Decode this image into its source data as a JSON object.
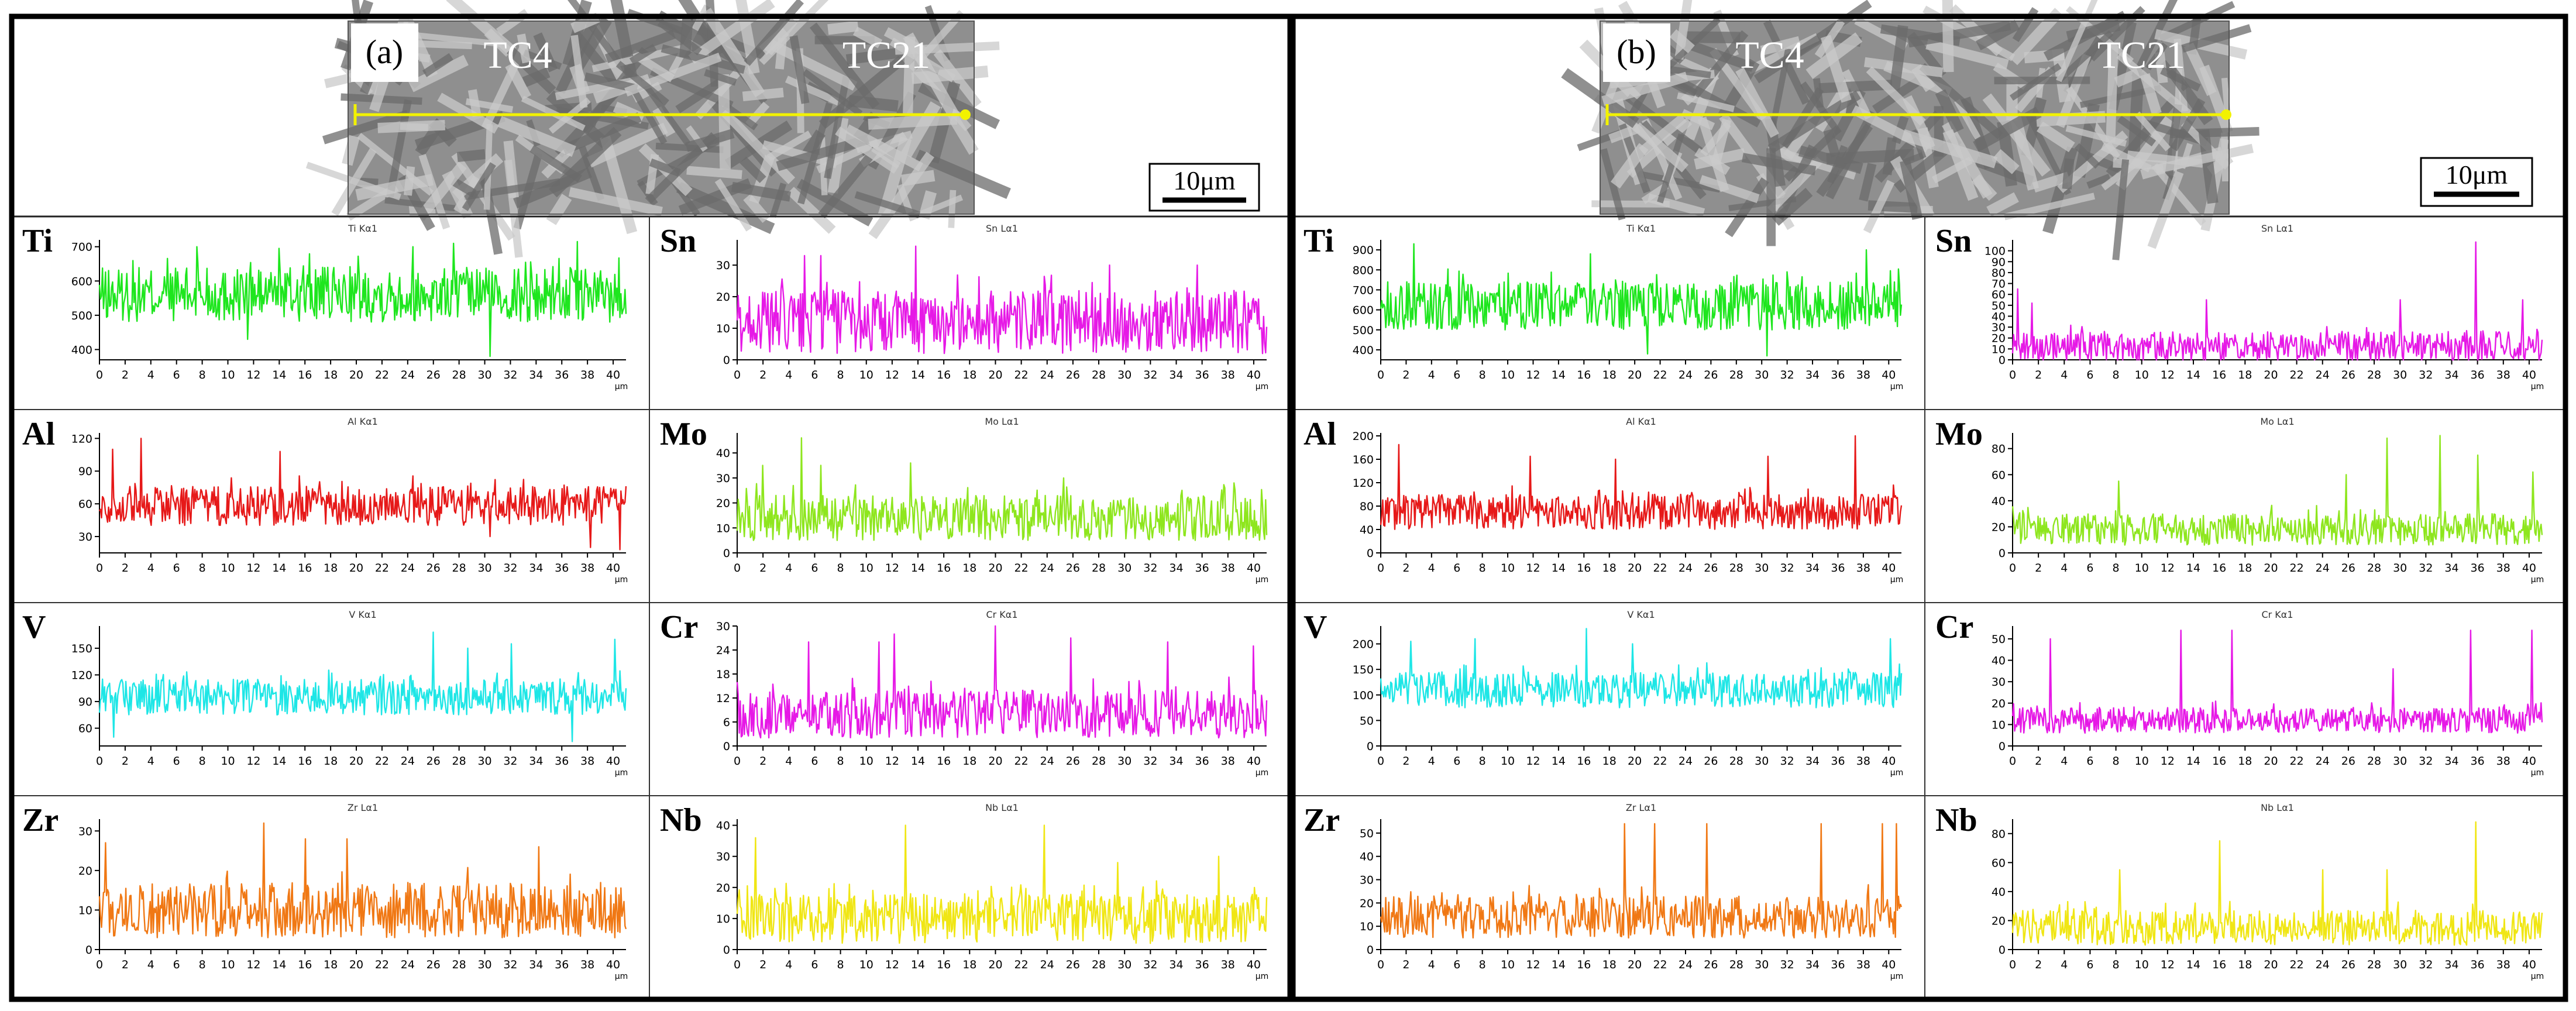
{
  "figure": {
    "x_unit": "μm",
    "scale_bar_label": "10μm",
    "panels": [
      {
        "id": "a",
        "label": "(a)",
        "left_material": "TC4",
        "right_material": "TC21"
      },
      {
        "id": "b",
        "label": "(b)",
        "left_material": "TC4",
        "right_material": "TC21"
      }
    ]
  },
  "chart_data": [
    {
      "panel": "a",
      "element": "Ti",
      "title": "Ti Kα1",
      "type": "line",
      "color": "#1ee61e",
      "x_range": [
        0,
        41
      ],
      "x_ticks": [
        0,
        2,
        4,
        6,
        8,
        10,
        12,
        14,
        16,
        18,
        20,
        22,
        24,
        26,
        28,
        30,
        32,
        34,
        36,
        38,
        40
      ],
      "ylim": [
        370,
        720
      ],
      "y_ticks": [
        400,
        500,
        600,
        700
      ],
      "series": [
        {
          "name": "Ti Kα1",
          "baseline": 560,
          "amplitude": 80,
          "spikes": [
            [
              7.6,
              700
            ],
            [
              11.5,
              430
            ],
            [
              14.0,
              695
            ],
            [
              24.4,
              700
            ],
            [
              27.6,
              710
            ],
            [
              30.4,
              380
            ],
            [
              37.2,
              715
            ]
          ]
        }
      ]
    },
    {
      "panel": "a",
      "element": "Sn",
      "title": "Sn Lα1",
      "type": "line",
      "color": "#e619e6",
      "x_range": [
        0,
        41
      ],
      "x_ticks": [
        0,
        2,
        4,
        6,
        8,
        10,
        12,
        14,
        16,
        18,
        20,
        22,
        24,
        26,
        28,
        30,
        32,
        34,
        36,
        38,
        40
      ],
      "ylim": [
        0,
        38
      ],
      "y_ticks": [
        0,
        10,
        20,
        30
      ],
      "series": [
        {
          "name": "Sn Lα1",
          "baseline": 12,
          "amplitude": 10,
          "spikes": [
            [
              5.2,
              33
            ],
            [
              6.5,
              33
            ],
            [
              13.8,
              36
            ],
            [
              28.8,
              30
            ],
            [
              35.6,
              30
            ]
          ]
        }
      ]
    },
    {
      "panel": "a",
      "element": "Al",
      "title": "Al Kα1",
      "type": "line",
      "color": "#e61919",
      "x_range": [
        0,
        41
      ],
      "x_ticks": [
        0,
        2,
        4,
        6,
        8,
        10,
        12,
        14,
        16,
        18,
        20,
        22,
        24,
        26,
        28,
        30,
        32,
        34,
        36,
        38,
        40
      ],
      "ylim": [
        15,
        125
      ],
      "y_ticks": [
        30,
        60,
        90,
        120
      ],
      "series": [
        {
          "name": "Al Kα1",
          "baseline": 58,
          "amplitude": 18,
          "spikes": [
            [
              1.0,
              110
            ],
            [
              3.2,
              120
            ],
            [
              14.1,
              108
            ],
            [
              30.4,
              30
            ],
            [
              38.2,
              20
            ],
            [
              40.5,
              18
            ]
          ]
        }
      ]
    },
    {
      "panel": "a",
      "element": "Mo",
      "title": "Mo Lα1",
      "type": "line",
      "color": "#8ee61e",
      "x_range": [
        0,
        41
      ],
      "x_ticks": [
        0,
        2,
        4,
        6,
        8,
        10,
        12,
        14,
        16,
        18,
        20,
        22,
        24,
        26,
        28,
        30,
        32,
        34,
        36,
        38,
        40
      ],
      "ylim": [
        0,
        48
      ],
      "y_ticks": [
        0,
        10,
        20,
        30,
        40
      ],
      "series": [
        {
          "name": "Mo Lα1",
          "baseline": 14,
          "amplitude": 9,
          "spikes": [
            [
              2.0,
              35
            ],
            [
              5.0,
              46
            ],
            [
              6.5,
              35
            ],
            [
              13.4,
              36
            ],
            [
              25.3,
              30
            ],
            [
              38.5,
              28
            ]
          ]
        }
      ]
    },
    {
      "panel": "a",
      "element": "V",
      "title": "V Kα1",
      "type": "line",
      "color": "#1ee6e6",
      "x_range": [
        0,
        41
      ],
      "x_ticks": [
        0,
        2,
        4,
        6,
        8,
        10,
        12,
        14,
        16,
        18,
        20,
        22,
        24,
        26,
        28,
        30,
        32,
        34,
        36,
        38,
        40
      ],
      "ylim": [
        40,
        175
      ],
      "y_ticks": [
        60,
        90,
        120,
        150
      ],
      "series": [
        {
          "name": "V Kα1",
          "baseline": 95,
          "amplitude": 20,
          "spikes": [
            [
              1.1,
              50
            ],
            [
              26.0,
              168
            ],
            [
              28.7,
              150
            ],
            [
              32.1,
              155
            ],
            [
              36.8,
              45
            ],
            [
              40.1,
              160
            ]
          ]
        }
      ]
    },
    {
      "panel": "a",
      "element": "Cr",
      "title": "Cr Kα1",
      "type": "line",
      "color": "#e619e6",
      "x_range": [
        0,
        41
      ],
      "x_ticks": [
        0,
        2,
        4,
        6,
        8,
        10,
        12,
        14,
        16,
        18,
        20,
        22,
        24,
        26,
        28,
        30,
        32,
        34,
        36,
        38,
        40
      ],
      "ylim": [
        0,
        30
      ],
      "y_ticks": [
        0,
        6,
        12,
        18,
        24,
        30
      ],
      "series": [
        {
          "name": "Cr Kα1",
          "baseline": 8,
          "amplitude": 6,
          "spikes": [
            [
              5.5,
              26
            ],
            [
              11.0,
              26
            ],
            [
              12.2,
              28
            ],
            [
              20.0,
              30
            ],
            [
              25.8,
              27
            ],
            [
              33.3,
              26
            ],
            [
              40.0,
              25
            ]
          ]
        }
      ]
    },
    {
      "panel": "a",
      "element": "Zr",
      "title": "Zr Lα1",
      "type": "line",
      "color": "#f07814",
      "x_range": [
        0,
        41
      ],
      "x_ticks": [
        0,
        2,
        4,
        6,
        8,
        10,
        12,
        14,
        16,
        18,
        20,
        22,
        24,
        26,
        28,
        30,
        32,
        34,
        36,
        38,
        40
      ],
      "ylim": [
        0,
        33
      ],
      "y_ticks": [
        0,
        10,
        20,
        30
      ],
      "series": [
        {
          "name": "Zr Lα1",
          "baseline": 10,
          "amplitude": 7,
          "spikes": [
            [
              0.5,
              27
            ],
            [
              12.8,
              32
            ],
            [
              16.0,
              28
            ],
            [
              19.3,
              28
            ],
            [
              34.2,
              26
            ]
          ]
        }
      ]
    },
    {
      "panel": "a",
      "element": "Nb",
      "title": "Nb Lα1",
      "type": "line",
      "color": "#f0e614",
      "x_range": [
        0,
        41
      ],
      "x_ticks": [
        0,
        2,
        4,
        6,
        8,
        10,
        12,
        14,
        16,
        18,
        20,
        22,
        24,
        26,
        28,
        30,
        32,
        34,
        36,
        38,
        40
      ],
      "ylim": [
        0,
        42
      ],
      "y_ticks": [
        0,
        10,
        20,
        30,
        40
      ],
      "series": [
        {
          "name": "Nb Lα1",
          "baseline": 10,
          "amplitude": 8,
          "spikes": [
            [
              1.4,
              36
            ],
            [
              13.0,
              40
            ],
            [
              23.8,
              40
            ],
            [
              29.5,
              28
            ],
            [
              37.3,
              30
            ]
          ]
        }
      ]
    },
    {
      "panel": "b",
      "element": "Ti",
      "title": "Ti Kα1",
      "type": "line",
      "color": "#1ee61e",
      "x_range": [
        0,
        41
      ],
      "x_ticks": [
        0,
        2,
        4,
        6,
        8,
        10,
        12,
        14,
        16,
        18,
        20,
        22,
        24,
        26,
        28,
        30,
        32,
        34,
        36,
        38,
        40
      ],
      "ylim": [
        350,
        950
      ],
      "y_ticks": [
        400,
        500,
        600,
        700,
        800,
        900
      ],
      "series": [
        {
          "name": "Ti Kα1",
          "baseline": 620,
          "amplitude": 120,
          "spikes": [
            [
              2.6,
              930
            ],
            [
              16.5,
              880
            ],
            [
              21.0,
              380
            ],
            [
              30.4,
              370
            ],
            [
              38.2,
              900
            ]
          ]
        }
      ]
    },
    {
      "panel": "b",
      "element": "Sn",
      "title": "Sn Lα1",
      "type": "line",
      "color": "#e619e6",
      "x_range": [
        0,
        41
      ],
      "x_ticks": [
        0,
        2,
        4,
        6,
        8,
        10,
        12,
        14,
        16,
        18,
        20,
        22,
        24,
        26,
        28,
        30,
        32,
        34,
        36,
        38,
        40
      ],
      "ylim": [
        0,
        110
      ],
      "y_ticks": [
        0,
        10,
        20,
        30,
        40,
        50,
        60,
        70,
        80,
        90,
        100
      ],
      "series": [
        {
          "name": "Sn Lα1",
          "baseline": 12,
          "amplitude": 14,
          "spikes": [
            [
              0.4,
              65
            ],
            [
              1.5,
              52
            ],
            [
              15.0,
              55
            ],
            [
              30.0,
              55
            ],
            [
              35.9,
              108
            ],
            [
              39.5,
              55
            ]
          ]
        }
      ]
    },
    {
      "panel": "b",
      "element": "Al",
      "title": "Al Kα1",
      "type": "line",
      "color": "#e61919",
      "x_range": [
        0,
        41
      ],
      "x_ticks": [
        0,
        2,
        4,
        6,
        8,
        10,
        12,
        14,
        16,
        18,
        20,
        22,
        24,
        26,
        28,
        30,
        32,
        34,
        36,
        38,
        40
      ],
      "ylim": [
        0,
        205
      ],
      "y_ticks": [
        0,
        40,
        80,
        120,
        160,
        200
      ],
      "series": [
        {
          "name": "Al Kα1",
          "baseline": 70,
          "amplitude": 30,
          "spikes": [
            [
              1.4,
              185
            ],
            [
              11.8,
              165
            ],
            [
              18.5,
              160
            ],
            [
              30.5,
              165
            ],
            [
              37.4,
              200
            ]
          ]
        }
      ]
    },
    {
      "panel": "b",
      "element": "Mo",
      "title": "Mo Lα1",
      "type": "line",
      "color": "#8ee61e",
      "x_range": [
        0,
        41
      ],
      "x_ticks": [
        0,
        2,
        4,
        6,
        8,
        10,
        12,
        14,
        16,
        18,
        20,
        22,
        24,
        26,
        28,
        30,
        32,
        34,
        36,
        38,
        40
      ],
      "ylim": [
        0,
        92
      ],
      "y_ticks": [
        0,
        20,
        40,
        60,
        80
      ],
      "series": [
        {
          "name": "Mo Lα1",
          "baseline": 18,
          "amplitude": 12,
          "spikes": [
            [
              8.2,
              55
            ],
            [
              25.8,
              60
            ],
            [
              29.0,
              88
            ],
            [
              33.1,
              90
            ],
            [
              36.0,
              75
            ],
            [
              40.3,
              62
            ]
          ]
        }
      ]
    },
    {
      "panel": "b",
      "element": "V",
      "title": "V Kα1",
      "type": "line",
      "color": "#1ee6e6",
      "x_range": [
        0,
        41
      ],
      "x_ticks": [
        0,
        2,
        4,
        6,
        8,
        10,
        12,
        14,
        16,
        18,
        20,
        22,
        24,
        26,
        28,
        30,
        32,
        34,
        36,
        38,
        40
      ],
      "ylim": [
        0,
        235
      ],
      "y_ticks": [
        0,
        50,
        100,
        150,
        200
      ],
      "series": [
        {
          "name": "V Kα1",
          "baseline": 110,
          "amplitude": 35,
          "spikes": [
            [
              2.4,
              205
            ],
            [
              7.4,
              210
            ],
            [
              16.2,
              230
            ],
            [
              19.8,
              200
            ],
            [
              40.1,
              210
            ]
          ]
        }
      ]
    },
    {
      "panel": "b",
      "element": "Cr",
      "title": "Cr Kα1",
      "type": "line",
      "color": "#e619e6",
      "x_range": [
        0,
        41
      ],
      "x_ticks": [
        0,
        2,
        4,
        6,
        8,
        10,
        12,
        14,
        16,
        18,
        20,
        22,
        24,
        26,
        28,
        30,
        32,
        34,
        36,
        38,
        40
      ],
      "ylim": [
        0,
        56
      ],
      "y_ticks": [
        0,
        10,
        20,
        30,
        40,
        50
      ],
      "series": [
        {
          "name": "Cr Kα1",
          "baseline": 12,
          "amplitude": 6,
          "spikes": [
            [
              2.9,
              50
            ],
            [
              13.0,
              54
            ],
            [
              17.0,
              54
            ],
            [
              29.5,
              36
            ],
            [
              35.5,
              54
            ],
            [
              40.2,
              54
            ]
          ]
        }
      ]
    },
    {
      "panel": "b",
      "element": "Zr",
      "title": "Zr Lα1",
      "type": "line",
      "color": "#f07814",
      "x_range": [
        0,
        41
      ],
      "x_ticks": [
        0,
        2,
        4,
        6,
        8,
        10,
        12,
        14,
        16,
        18,
        20,
        22,
        24,
        26,
        28,
        30,
        32,
        34,
        36,
        38,
        40
      ],
      "ylim": [
        0,
        56
      ],
      "y_ticks": [
        0,
        10,
        20,
        30,
        40,
        50
      ],
      "series": [
        {
          "name": "Zr Lα1",
          "baseline": 14,
          "amplitude": 9,
          "spikes": [
            [
              19.2,
              54
            ],
            [
              21.6,
              54
            ],
            [
              25.7,
              54
            ],
            [
              34.7,
              54
            ],
            [
              39.5,
              54
            ],
            [
              40.6,
              54
            ]
          ]
        }
      ]
    },
    {
      "panel": "b",
      "element": "Nb",
      "title": "Nb Lα1",
      "type": "line",
      "color": "#f0e614",
      "x_range": [
        0,
        41
      ],
      "x_ticks": [
        0,
        2,
        4,
        6,
        8,
        10,
        12,
        14,
        16,
        18,
        20,
        22,
        24,
        26,
        28,
        30,
        32,
        34,
        36,
        38,
        40
      ],
      "ylim": [
        0,
        90
      ],
      "y_ticks": [
        0,
        20,
        40,
        60,
        80
      ],
      "series": [
        {
          "name": "Nb Lα1",
          "baseline": 15,
          "amplitude": 12,
          "spikes": [
            [
              8.3,
              55
            ],
            [
              16.0,
              75
            ],
            [
              24.0,
              55
            ],
            [
              29.0,
              55
            ],
            [
              35.9,
              88
            ]
          ]
        }
      ]
    }
  ]
}
